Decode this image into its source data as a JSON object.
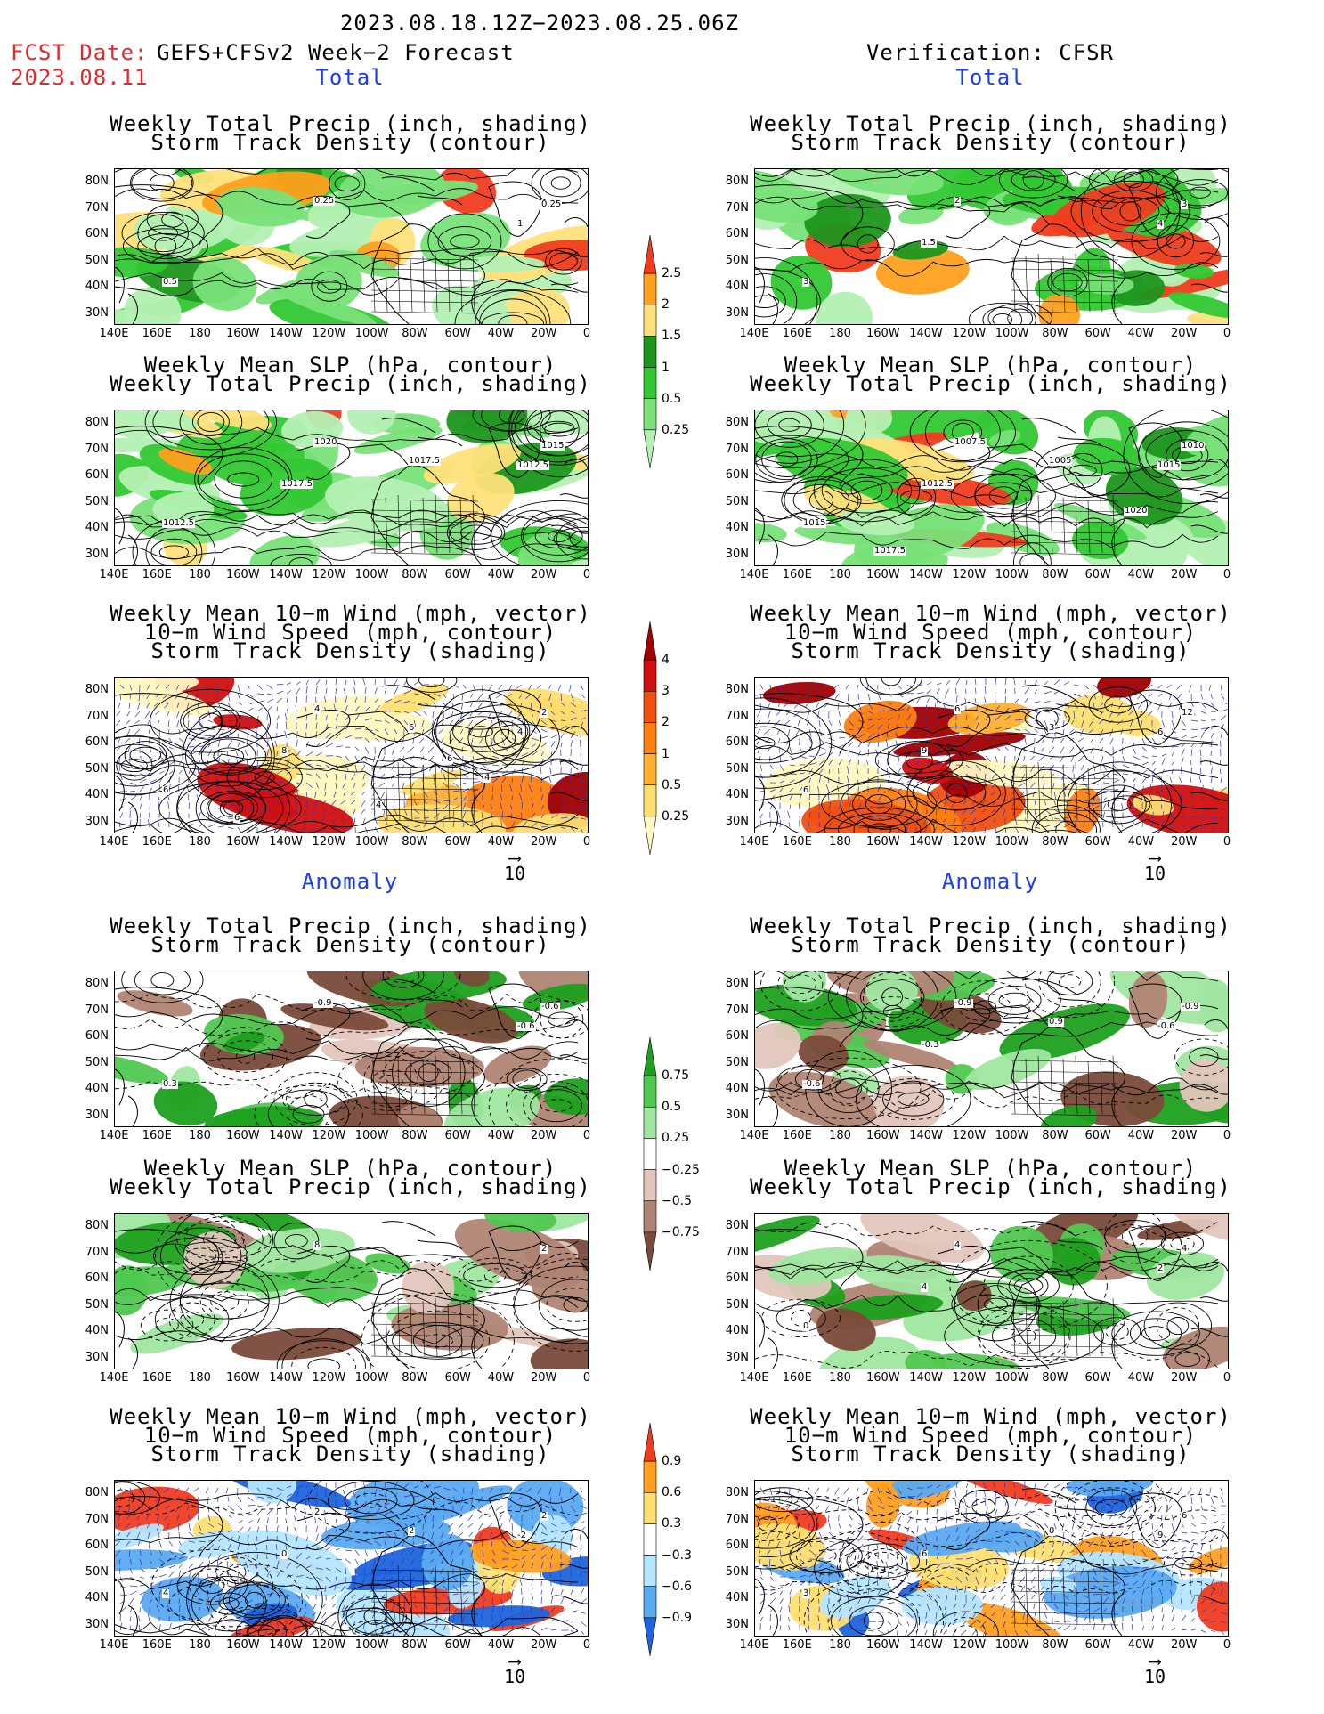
{
  "header": {
    "title": "2023.08.18.12Z−2023.08.25.06Z",
    "fcst_label": "FCST Date:",
    "fcst_date": "2023.08.11",
    "model": "GEFS+CFSv2 Week−2 Forecast",
    "verification": "Verification: CFSR"
  },
  "sections": {
    "total": "Total",
    "anomaly": "Anomaly"
  },
  "panel_titles": {
    "precip_storm": [
      "Weekly Total Precip (inch, shading)",
      "Storm Track Density (contour)"
    ],
    "slp_precip": [
      "Weekly Mean SLP (hPa, contour)",
      "Weekly Total Precip (inch, shading)"
    ],
    "wind": [
      "Weekly Mean 10−m Wind (mph, vector)",
      "10−m Wind Speed (mph, contour)",
      "Storm Track Density (shading)"
    ]
  },
  "axes": {
    "lat_ticks": [
      "80N",
      "70N",
      "60N",
      "50N",
      "40N",
      "30N"
    ],
    "lon_ticks": [
      "140E",
      "160E",
      "180",
      "160W",
      "140W",
      "120W",
      "100W",
      "80W",
      "60W",
      "40W",
      "20W",
      "0"
    ]
  },
  "vector_ref": "10",
  "colorbars": {
    "precip_total": {
      "levels": [
        "0.25",
        "0.5",
        "1",
        "1.5",
        "2",
        "2.5"
      ],
      "colors": [
        "#b4f0b4",
        "#78e178",
        "#32c832",
        "#1e961e",
        "#ffe07a",
        "#ffa01e",
        "#f03c1e"
      ]
    },
    "storm_total": {
      "levels": [
        "0.25",
        "0.5",
        "1",
        "2",
        "3",
        "4"
      ],
      "colors": [
        "#fff8c0",
        "#ffe070",
        "#ffb030",
        "#ff8010",
        "#f05010",
        "#d01010",
        "#a00000"
      ]
    },
    "precip_anom": {
      "levels": [
        "0.75",
        "0.5",
        "0.25",
        "−0.25",
        "−0.5",
        "−0.75"
      ],
      "colors": [
        "#1ea01e",
        "#50c850",
        "#a0e6a0",
        "#ffffff",
        "#e2c6bc",
        "#b08474",
        "#7a4a3a"
      ]
    },
    "storm_anom": {
      "levels": [
        "0.9",
        "0.6",
        "0.3",
        "−0.3",
        "−0.6",
        "−0.9"
      ],
      "colors": [
        "#f03c1e",
        "#ffa020",
        "#ffe070",
        "#ffffff",
        "#b4e6ff",
        "#5aaaf0",
        "#1e64dc"
      ]
    }
  },
  "contour_labels": {
    "p1": [
      "0.25",
      "0.25",
      "1",
      "0.5"
    ],
    "p2": [
      "2",
      "3",
      "4",
      "3",
      "1.5"
    ],
    "p3": [
      "1020",
      "1015",
      "1012.5",
      "1012.5",
      "1017.5",
      "1017.5"
    ],
    "p4": [
      "1007.5",
      "1010",
      "1015",
      "1015",
      "1012.5",
      "1005",
      "1020",
      "1017.5"
    ],
    "p5": [
      "4",
      "2",
      "4",
      "6",
      "8",
      "6",
      "4",
      "6",
      "4",
      "6"
    ],
    "p6": [
      "6",
      "12",
      "6",
      "6",
      "9",
      "3"
    ],
    "p7": [
      "-0.9",
      "-0.6",
      "-0.6",
      "0.3"
    ],
    "p8": [
      "-0.9",
      "-0.9",
      "-0.6",
      "-0.6",
      "-0.3",
      "0.9"
    ],
    "p9": [
      "8",
      "2"
    ],
    "p10": [
      "4",
      "4",
      "2",
      "0",
      "4"
    ],
    "p11": [
      "2",
      "2",
      "-2",
      "4",
      "0",
      "2"
    ],
    "p12": [
      "3",
      "6",
      "9",
      "3",
      "6",
      "0"
    ]
  }
}
